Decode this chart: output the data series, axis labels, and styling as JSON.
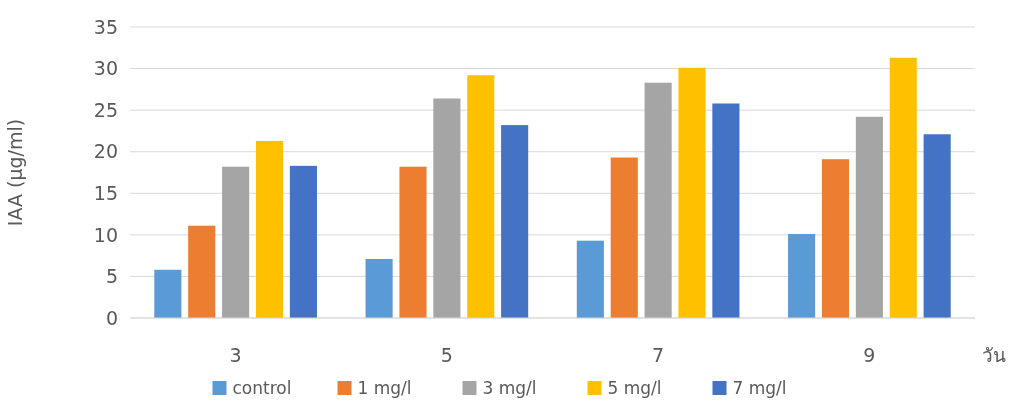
{
  "chart_data": {
    "type": "bar",
    "xlabel": "วัน",
    "ylabel": "IAA (µg/ml)",
    "categories": [
      "3",
      "5",
      "7",
      "9"
    ],
    "series": [
      {
        "name": "control",
        "color": "#5b9bd5",
        "values": [
          5.8,
          7.1,
          9.3,
          10.1
        ]
      },
      {
        "name": "1 mg/l",
        "color": "#ed7d31",
        "values": [
          11.1,
          18.2,
          19.3,
          19.1
        ]
      },
      {
        "name": "3 mg/l",
        "color": "#a5a5a5",
        "values": [
          18.2,
          26.4,
          28.3,
          24.2
        ]
      },
      {
        "name": "5 mg/l",
        "color": "#ffc000",
        "values": [
          21.3,
          29.2,
          30.1,
          31.3
        ]
      },
      {
        "name": "7 mg/l",
        "color": "#4472c4",
        "values": [
          18.3,
          23.2,
          25.8,
          22.1
        ]
      }
    ],
    "ylim": [
      0,
      35
    ],
    "yticks": [
      0,
      5,
      10,
      15,
      20,
      25,
      30,
      35
    ],
    "grid": "y",
    "legend": "bottom"
  }
}
